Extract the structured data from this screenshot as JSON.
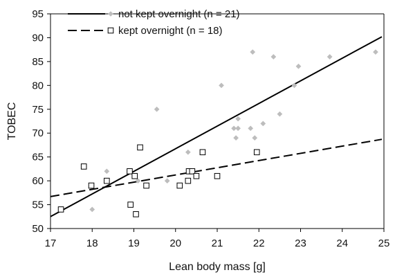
{
  "chart_data": {
    "type": "scatter",
    "xlabel": "Lean body mass [g]",
    "ylabel": "TOBEC",
    "xlim": [
      17,
      25
    ],
    "ylim": [
      50,
      95
    ],
    "x_ticks": [
      17,
      18,
      19,
      20,
      21,
      22,
      23,
      24,
      25
    ],
    "y_ticks": [
      50,
      55,
      60,
      65,
      70,
      75,
      80,
      85,
      90,
      95
    ],
    "grid": false,
    "legend_position": "top-left",
    "series": [
      {
        "name": "not kept overnight (n = 21)",
        "marker": "diamond",
        "color": "#bdbdbd",
        "points": [
          [
            18.35,
            62
          ],
          [
            18.0,
            54
          ],
          [
            19.1,
            60
          ],
          [
            19.55,
            75
          ],
          [
            19.8,
            60
          ],
          [
            20.3,
            66
          ],
          [
            21.1,
            80
          ],
          [
            21.4,
            71
          ],
          [
            21.5,
            71
          ],
          [
            21.45,
            69
          ],
          [
            21.5,
            73
          ],
          [
            21.8,
            71
          ],
          [
            21.85,
            87
          ],
          [
            22.1,
            72
          ],
          [
            22.35,
            86
          ],
          [
            22.5,
            74
          ],
          [
            21.9,
            69
          ],
          [
            22.85,
            80
          ],
          [
            22.95,
            84
          ],
          [
            23.7,
            86
          ],
          [
            24.8,
            87
          ]
        ],
        "trendline": {
          "style": "solid",
          "color": "#000000",
          "x": [
            17,
            24.95
          ],
          "y": [
            52.5,
            90.2
          ]
        }
      },
      {
        "name": "kept overnight (n = 18)",
        "marker": "open-square",
        "color": "#000000",
        "points": [
          [
            17.25,
            54
          ],
          [
            17.8,
            63
          ],
          [
            17.98,
            59
          ],
          [
            18.35,
            60
          ],
          [
            18.9,
            62
          ],
          [
            18.92,
            55
          ],
          [
            19.02,
            61
          ],
          [
            19.05,
            53
          ],
          [
            19.15,
            67
          ],
          [
            19.3,
            59
          ],
          [
            20.1,
            59
          ],
          [
            20.3,
            60
          ],
          [
            20.32,
            62
          ],
          [
            20.4,
            62
          ],
          [
            20.5,
            61
          ],
          [
            20.65,
            66
          ],
          [
            21.0,
            61
          ],
          [
            21.95,
            66
          ]
        ],
        "trendline": {
          "style": "dashed",
          "color": "#000000",
          "x": [
            17,
            24.95
          ],
          "y": [
            56.7,
            68.7
          ]
        }
      }
    ]
  }
}
